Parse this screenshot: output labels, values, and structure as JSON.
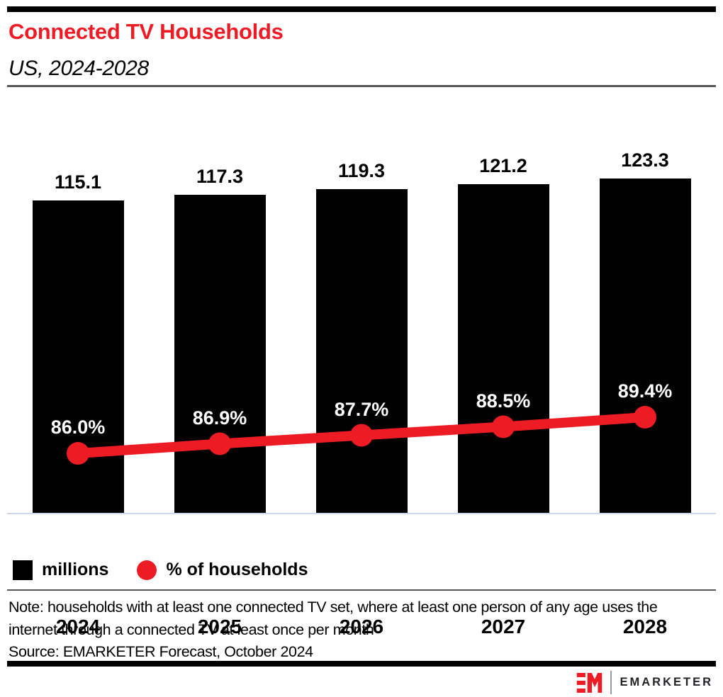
{
  "chart_data": {
    "type": "bar",
    "title": "Connected TV Households",
    "subtitle": "US, 2024-2028",
    "categories": [
      "2024",
      "2025",
      "2026",
      "2027",
      "2028"
    ],
    "series": [
      {
        "name": "millions",
        "type": "bar",
        "color": "#000000",
        "values": [
          115.1,
          117.3,
          119.3,
          121.2,
          123.3
        ]
      },
      {
        "name": "% of households",
        "type": "line",
        "color": "#ED1C24",
        "values": [
          86.0,
          86.9,
          87.7,
          88.5,
          89.4
        ]
      }
    ],
    "ylim": [
      0,
      130
    ],
    "grid": false,
    "legend_position": "bottom"
  },
  "legend": {
    "items": [
      {
        "label": "millions",
        "swatch": "black-square"
      },
      {
        "label": "% of households",
        "swatch": "red-circle"
      }
    ]
  },
  "footer": {
    "note": "Note: households with at least one connected TV set, where at least one person of any age uses the internet through a connected TV at least once per month",
    "source": "Source: EMARKETER Forecast, October 2024",
    "brand": "EMARKETER"
  },
  "colors": {
    "accent_red": "#ED1C24",
    "bar_black": "#000000",
    "baseline_line": "#CCD7EC",
    "divider_gray": "#56575B"
  }
}
